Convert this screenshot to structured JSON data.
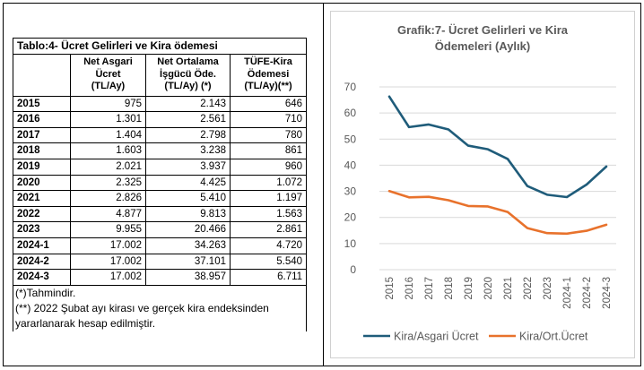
{
  "table": {
    "title": "Tablo:4- Ücret Gelirleri ve Kira ödemesi",
    "headers": [
      "Net Asgari Ücret (TL/Ay)",
      "Net Ortalama İşgücü Öde. (TL/Ay) (*)",
      "TÜFE-Kira Ödemesi (TL/Ay)(**)"
    ],
    "header_lines": [
      [
        "Net Asgari",
        "Ücret",
        "(TL/Ay)"
      ],
      [
        "Net Ortalama",
        "İşgücü Öde.",
        "(TL/Ay) (*)"
      ],
      [
        "TÜFE-Kira",
        "Ödemesi",
        "(TL/Ay)(**)"
      ]
    ],
    "rows": [
      {
        "year": "2015",
        "a": "975",
        "b": "2.143",
        "c": "646"
      },
      {
        "year": "2016",
        "a": "1.301",
        "b": "2.561",
        "c": "710"
      },
      {
        "year": "2017",
        "a": "1.404",
        "b": "2.798",
        "c": "780"
      },
      {
        "year": "2018",
        "a": "1.603",
        "b": "3.238",
        "c": "861"
      },
      {
        "year": "2019",
        "a": "2.021",
        "b": "3.937",
        "c": "960"
      },
      {
        "year": "2020",
        "a": "2.325",
        "b": "4.425",
        "c": "1.072"
      },
      {
        "year": "2021",
        "a": "2.826",
        "b": "5.410",
        "c": "1.197"
      },
      {
        "year": "2022",
        "a": "4.877",
        "b": "9.813",
        "c": "1.563"
      },
      {
        "year": "2023",
        "a": "9.955",
        "b": "20.466",
        "c": "2.861"
      },
      {
        "year": "2024-1",
        "a": "17.002",
        "b": "34.263",
        "c": "4.720"
      },
      {
        "year": "2024-2",
        "a": "17.002",
        "b": "37.101",
        "c": "5.540"
      },
      {
        "year": "2024-3",
        "a": "17.002",
        "b": "38.957",
        "c": "6.711"
      }
    ],
    "notes": [
      "(*)Tahmindir.",
      "(**) 2022 Şubat ayı kirası ve gerçek kira endeksinden yararlanarak hesap edilmiştir."
    ]
  },
  "chart_data": {
    "type": "line",
    "title": "Grafik:7- Ücret Gelirleri ve Kira Ödemeleri (Aylık)",
    "title_lines": [
      "Grafik:7- Ücret Gelirleri ve Kira",
      "Ödemeleri (Aylık)"
    ],
    "categories": [
      "2015",
      "2016",
      "2017",
      "2018",
      "2019",
      "2020",
      "2021",
      "2022",
      "2023",
      "2024-1",
      "2024-2",
      "2024-3"
    ],
    "series": [
      {
        "name": "Kira/Asgari Ücret",
        "color": "#1f5c7a",
        "values": [
          66.3,
          54.6,
          55.6,
          53.7,
          47.5,
          46.1,
          42.4,
          32.0,
          28.7,
          27.8,
          32.6,
          39.5
        ]
      },
      {
        "name": "Kira/Ort.Ücret",
        "color": "#e8722c",
        "values": [
          30.1,
          27.7,
          27.9,
          26.6,
          24.4,
          24.2,
          22.1,
          15.9,
          14.0,
          13.8,
          14.9,
          17.2
        ]
      }
    ],
    "ylim": [
      0,
      70
    ],
    "yticks": [
      0,
      10,
      20,
      30,
      40,
      50,
      60,
      70
    ],
    "grid": true,
    "legend": "bottom"
  }
}
